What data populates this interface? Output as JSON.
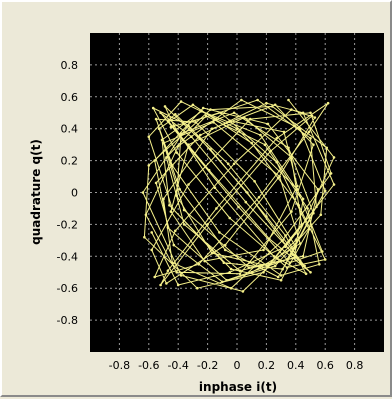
{
  "chart_data": {
    "type": "line",
    "title": "",
    "xlabel": "inphase i(t)",
    "ylabel": "quadrature q(t)",
    "xlim": [
      -1,
      1
    ],
    "ylim": [
      -1,
      1
    ],
    "xticks": [
      -0.8,
      -0.6,
      -0.4,
      -0.2,
      0,
      0.2,
      0.4,
      0.6,
      0.8
    ],
    "yticks": [
      -0.8,
      -0.6,
      -0.4,
      -0.2,
      0,
      0.2,
      0.4,
      0.6,
      0.8
    ],
    "xtick_labels": [
      "-0.8",
      "-0.6",
      "-0.4",
      "-0.2",
      "0",
      "0.2",
      "0.4",
      "0.6",
      "0.8"
    ],
    "ytick_labels": [
      "-0.8",
      "-0.6",
      "-0.4",
      "-0.2",
      "0",
      "0.2",
      "0.4",
      "0.6",
      "0.8"
    ],
    "grid": true,
    "legend": "none",
    "colors": {
      "plot_background": "#000000",
      "trace": "#f5f08a",
      "grid": "#9a9a9a",
      "panel": "#ece9d8"
    },
    "series": [
      {
        "x": [
          -0.05,
          0.32,
          0.41,
          0.18,
          -0.22,
          -0.45,
          -0.33,
          0.05,
          0.37,
          0.44,
          0.21,
          -0.17,
          -0.41,
          -0.38,
          -0.02,
          0.35,
          0.52,
          0.31,
          -0.09,
          -0.46,
          -0.51,
          -0.24,
          0.16,
          0.45,
          0.39,
          0.02,
          -0.36,
          -0.48,
          -0.21,
          0.19,
          0.48,
          0.56,
          0.3,
          -0.12,
          -0.44,
          -0.55,
          -0.28,
          0.12,
          0.4,
          0.28,
          -0.08,
          -0.39,
          -0.53,
          -0.3,
          0.1,
          0.42,
          0.6,
          0.34,
          -0.05,
          -0.41,
          -0.57,
          -0.33,
          0.07,
          0.38,
          0.5,
          0.22,
          -0.19,
          -0.47,
          -0.42,
          -0.06,
          0.33,
          0.47,
          0.25,
          -0.15,
          -0.43,
          -0.49,
          -0.18,
          0.2,
          0.46,
          0.43,
          0.06,
          -0.31,
          -0.52,
          -0.37,
          0.01,
          0.36,
          0.58,
          0.41,
          0.0,
          -0.38,
          -0.6,
          -0.44,
          -0.04,
          0.3,
          0.49,
          0.27,
          -0.11,
          -0.45
        ],
        "y": [
          0.45,
          0.38,
          0.04,
          -0.36,
          -0.43,
          -0.12,
          0.3,
          0.47,
          0.22,
          -0.2,
          -0.46,
          -0.38,
          -0.02,
          0.37,
          0.5,
          0.28,
          -0.13,
          -0.48,
          -0.44,
          -0.08,
          0.33,
          0.51,
          0.36,
          -0.04,
          -0.41,
          -0.49,
          -0.2,
          0.22,
          0.48,
          0.3,
          -0.1,
          -0.45,
          -0.52,
          -0.25,
          0.17,
          0.46,
          0.44,
          0.07,
          -0.34,
          -0.53,
          -0.36,
          0.02,
          0.4,
          0.55,
          0.31,
          -0.08,
          -0.42,
          -0.47,
          -0.16,
          0.25,
          0.53,
          0.42,
          0.0,
          -0.39,
          -0.5,
          -0.29,
          0.14,
          0.45,
          0.49,
          0.18,
          -0.27,
          -0.51,
          -0.4,
          0.03,
          0.42,
          0.54,
          0.27,
          -0.15,
          -0.46,
          -0.43,
          -0.06,
          0.35,
          0.5,
          0.33,
          -0.09,
          -0.44,
          -0.37,
          0.02,
          0.4,
          0.57,
          0.35,
          -0.1,
          -0.48,
          -0.55,
          -0.23,
          0.19,
          0.5,
          0.41
        ]
      },
      {
        "x": [
          0.1,
          0.43,
          0.29,
          -0.16,
          -0.5,
          -0.36,
          0.08,
          0.45,
          0.55,
          0.21,
          -0.23,
          -0.56,
          -0.47,
          -0.07,
          0.34,
          0.6,
          0.43,
          0.03,
          -0.4,
          -0.62,
          -0.41,
          0.02,
          0.37,
          0.52,
          0.26,
          -0.17,
          -0.5,
          -0.44,
          -0.04,
          0.31,
          0.64,
          0.5,
          0.09,
          -0.33,
          -0.58,
          -0.48,
          -0.08,
          0.28,
          0.53,
          0.37,
          -0.02,
          -0.42,
          -0.56,
          -0.26,
          0.15,
          0.49,
          0.62,
          0.27,
          -0.14,
          -0.47,
          -0.52,
          -0.2,
          0.23,
          0.51
        ],
        "y": [
          -0.5,
          -0.32,
          0.1,
          0.44,
          0.31,
          -0.11,
          -0.47,
          -0.4,
          0.02,
          0.43,
          0.53,
          0.2,
          -0.22,
          -0.55,
          -0.42,
          0.01,
          0.4,
          0.58,
          0.29,
          -0.14,
          -0.5,
          -0.51,
          -0.12,
          0.3,
          0.55,
          0.4,
          -0.04,
          -0.44,
          -0.6,
          -0.3,
          0.12,
          0.5,
          0.46,
          0.05,
          -0.36,
          -0.57,
          -0.33,
          0.09,
          0.47,
          0.52,
          0.18,
          -0.24,
          -0.53,
          -0.45,
          -0.03,
          0.38,
          0.56,
          0.34,
          -0.1,
          -0.49,
          -0.58,
          -0.2,
          0.26,
          0.48
        ]
      },
      {
        "x": [
          -0.58,
          -0.4,
          -0.05,
          0.33,
          0.66,
          0.45,
          0.2,
          -0.25,
          -0.55,
          -0.43,
          -0.1,
          0.26,
          0.57,
          0.61,
          0.24,
          -0.18,
          -0.6,
          -0.63,
          -0.27,
          0.18,
          0.54,
          0.5,
          0.14,
          -0.32,
          -0.64,
          -0.38,
          0.04,
          0.4,
          0.66,
          0.35
        ],
        "y": [
          -0.25,
          -0.58,
          -0.5,
          -0.34,
          0.05,
          0.5,
          0.56,
          0.36,
          0.06,
          -0.33,
          -0.56,
          -0.46,
          -0.14,
          0.28,
          0.54,
          0.52,
          0.17,
          -0.28,
          -0.6,
          -0.5,
          -0.09,
          0.34,
          0.58,
          0.44,
          0.0,
          -0.52,
          -0.62,
          -0.3,
          0.22,
          0.58
        ]
      }
    ]
  }
}
